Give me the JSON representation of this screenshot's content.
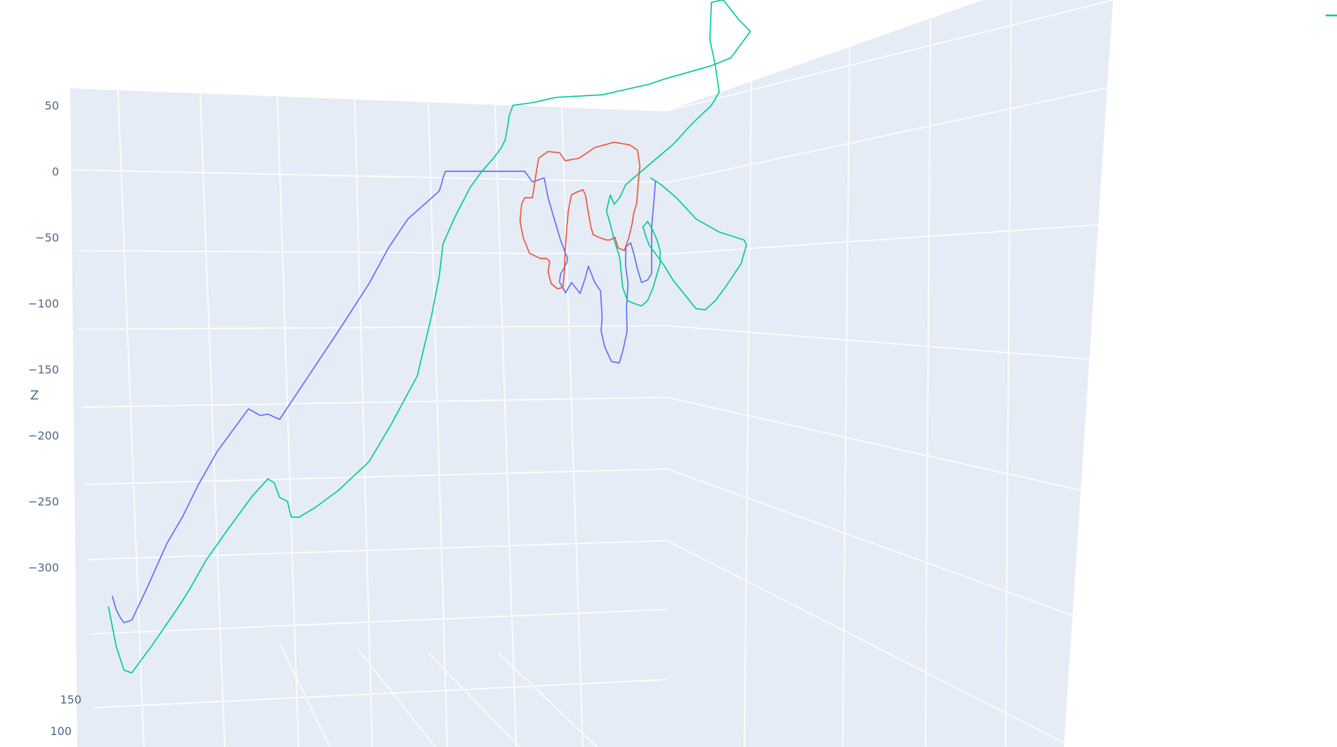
{
  "chart_data": {
    "type": "line3d",
    "scene": {
      "background": "#e5ecf6",
      "gridcolor": "#ffffff",
      "zaxis": {
        "title": "Z",
        "range": [
          -350,
          60
        ],
        "ticks": [
          50,
          0,
          -50,
          -100,
          -150,
          -200,
          -250,
          -300
        ]
      },
      "yaxis": {
        "title": "",
        "ticks": [
          150,
          100
        ]
      }
    },
    "legend": {
      "placement": "top-right",
      "visible_marker_color": "#00cc96"
    },
    "series": [
      {
        "color": "#636efa",
        "points": [
          [
            -300,
            40,
            -322
          ],
          [
            -295,
            40,
            -332
          ],
          [
            -290,
            40,
            -338
          ],
          [
            -285,
            40,
            -342
          ],
          [
            -275,
            40,
            -340
          ],
          [
            -255,
            40,
            -315
          ],
          [
            -230,
            40,
            -282
          ],
          [
            -210,
            40,
            -262
          ],
          [
            -190,
            40,
            -238
          ],
          [
            -165,
            40,
            -212
          ],
          [
            -140,
            40,
            -192
          ],
          [
            -125,
            40,
            -180
          ],
          [
            -110,
            40,
            -185
          ],
          [
            -100,
            40,
            -184
          ],
          [
            -85,
            40,
            -188
          ],
          [
            -50,
            40,
            -157
          ],
          [
            -5,
            40,
            -117
          ],
          [
            30,
            40,
            -85
          ],
          [
            55,
            40,
            -58
          ],
          [
            80,
            40,
            -36
          ],
          [
            120,
            40,
            -15
          ],
          [
            123,
            40,
            -10
          ],
          [
            125,
            40,
            -5
          ],
          [
            128,
            40,
            0
          ],
          [
            170,
            40,
            0
          ],
          [
            210,
            40,
            0
          ],
          [
            230,
            40,
            0
          ],
          [
            240,
            40,
            -8
          ],
          [
            255,
            40,
            -5
          ],
          [
            260,
            40,
            -20
          ],
          [
            268,
            40,
            -36
          ],
          [
            276,
            40,
            -52
          ],
          [
            283,
            40,
            -63
          ],
          [
            283,
            25,
            -65
          ],
          [
            280,
            10,
            -68
          ],
          [
            275,
            0,
            -72
          ],
          [
            270,
            -5,
            -76
          ],
          [
            268,
            -10,
            -82
          ],
          [
            275,
            -15,
            -90
          ],
          [
            282,
            -20,
            -82
          ],
          [
            292,
            -28,
            -90
          ],
          [
            300,
            -20,
            -78
          ],
          [
            305,
            -10,
            -70
          ],
          [
            312,
            -20,
            -82
          ],
          [
            318,
            -30,
            -88
          ],
          [
            320,
            -30,
            -108
          ],
          [
            318,
            -35,
            -118
          ],
          [
            322,
            -40,
            -130
          ],
          [
            330,
            -45,
            -141
          ],
          [
            340,
            -45,
            -142
          ],
          [
            345,
            -45,
            -132
          ],
          [
            350,
            -45,
            -118
          ],
          [
            350,
            -40,
            -100
          ],
          [
            352,
            -40,
            -82
          ],
          [
            350,
            -30,
            -68
          ],
          [
            352,
            -20,
            -55
          ],
          [
            358,
            -20,
            -52
          ],
          [
            362,
            -20,
            -60
          ],
          [
            366,
            -20,
            -70
          ],
          [
            372,
            -20,
            -82
          ],
          [
            380,
            -20,
            -80
          ],
          [
            385,
            -20,
            -75
          ],
          [
            385,
            -20,
            -64
          ],
          [
            385,
            -20,
            -50
          ],
          [
            385,
            -20,
            -40
          ],
          [
            388,
            -20,
            -20
          ],
          [
            390,
            -20,
            -5
          ]
        ]
      },
      {
        "color": "#00cc96",
        "points": [
          [
            -305,
            40,
            -330
          ],
          [
            -300,
            40,
            -345
          ],
          [
            -295,
            40,
            -360
          ],
          [
            -285,
            40,
            -378
          ],
          [
            -275,
            40,
            -380
          ],
          [
            -250,
            40,
            -360
          ],
          [
            -215,
            40,
            -330
          ],
          [
            -200,
            40,
            -316
          ],
          [
            -180,
            40,
            -295
          ],
          [
            -150,
            40,
            -270
          ],
          [
            -120,
            40,
            -246
          ],
          [
            -100,
            40,
            -233
          ],
          [
            -92,
            40,
            -236
          ],
          [
            -85,
            40,
            -247
          ],
          [
            -75,
            40,
            -250
          ],
          [
            -70,
            40,
            -262
          ],
          [
            -60,
            40,
            -262
          ],
          [
            -40,
            40,
            -255
          ],
          [
            -10,
            40,
            -242
          ],
          [
            30,
            40,
            -220
          ],
          [
            60,
            40,
            -190
          ],
          [
            80,
            40,
            -168
          ],
          [
            92,
            40,
            -155
          ],
          [
            110,
            40,
            -110
          ],
          [
            120,
            40,
            -80
          ],
          [
            125,
            40,
            -55
          ],
          [
            140,
            40,
            -35
          ],
          [
            160,
            40,
            -12
          ],
          [
            175,
            40,
            0
          ],
          [
            190,
            40,
            10
          ],
          [
            200,
            40,
            18
          ],
          [
            205,
            40,
            24
          ],
          [
            208,
            40,
            34
          ],
          [
            210,
            40,
            42
          ],
          [
            215,
            40,
            50
          ],
          [
            240,
            40,
            52
          ],
          [
            270,
            40,
            56
          ],
          [
            330,
            40,
            58
          ],
          [
            360,
            40,
            62
          ],
          [
            390,
            40,
            66
          ],
          [
            410,
            40,
            70
          ],
          [
            440,
            40,
            75
          ],
          [
            470,
            40,
            80
          ],
          [
            495,
            40,
            86
          ],
          [
            520,
            40,
            106
          ],
          [
            505,
            40,
            115
          ],
          [
            485,
            40,
            130
          ],
          [
            470,
            40,
            128
          ],
          [
            468,
            40,
            100
          ],
          [
            475,
            40,
            80
          ],
          [
            480,
            40,
            60
          ],
          [
            470,
            40,
            50
          ],
          [
            445,
            40,
            36
          ],
          [
            420,
            40,
            20
          ],
          [
            400,
            40,
            10
          ],
          [
            380,
            40,
            0
          ],
          [
            360,
            40,
            -10
          ],
          [
            352,
            40,
            -20
          ],
          [
            345,
            40,
            -25
          ],
          [
            340,
            40,
            -18
          ],
          [
            335,
            40,
            -30
          ],
          [
            340,
            40,
            -40
          ],
          [
            345,
            40,
            -52
          ],
          [
            352,
            40,
            -65
          ],
          [
            356,
            40,
            -88
          ],
          [
            362,
            40,
            -98
          ],
          [
            370,
            40,
            -100
          ],
          [
            380,
            40,
            -102
          ],
          [
            388,
            40,
            -98
          ],
          [
            395,
            40,
            -88
          ],
          [
            400,
            40,
            -78
          ],
          [
            404,
            40,
            -70
          ],
          [
            404,
            40,
            -60
          ],
          [
            400,
            40,
            -52
          ],
          [
            394,
            40,
            -44
          ],
          [
            388,
            40,
            -38
          ],
          [
            382,
            40,
            -42
          ],
          [
            385,
            40,
            -48
          ],
          [
            390,
            40,
            -56
          ],
          [
            400,
            40,
            -64
          ],
          [
            410,
            40,
            -72
          ],
          [
            420,
            40,
            -82
          ],
          [
            435,
            40,
            -93
          ],
          [
            450,
            40,
            -104
          ],
          [
            462,
            40,
            -105
          ],
          [
            475,
            40,
            -98
          ],
          [
            490,
            40,
            -86
          ],
          [
            508,
            40,
            -70
          ],
          [
            515,
            40,
            -56
          ],
          [
            512,
            40,
            -52
          ],
          [
            480,
            40,
            -46
          ],
          [
            450,
            40,
            -36
          ],
          [
            425,
            40,
            -20
          ],
          [
            405,
            40,
            -10
          ],
          [
            392,
            40,
            -5
          ]
        ]
      },
      {
        "color": "#ef553b",
        "points": [
          [
            230,
            40,
            -20
          ],
          [
            240,
            40,
            -20
          ],
          [
            245,
            40,
            0
          ],
          [
            248,
            40,
            10
          ],
          [
            260,
            40,
            15
          ],
          [
            275,
            40,
            14
          ],
          [
            282,
            40,
            8
          ],
          [
            300,
            40,
            10
          ],
          [
            320,
            40,
            18
          ],
          [
            345,
            40,
            22
          ],
          [
            365,
            40,
            20
          ],
          [
            375,
            40,
            16
          ],
          [
            378,
            40,
            4
          ],
          [
            376,
            40,
            -8
          ],
          [
            374,
            40,
            -24
          ],
          [
            370,
            40,
            -32
          ],
          [
            368,
            40,
            -40
          ],
          [
            364,
            40,
            -50
          ],
          [
            358,
            40,
            -60
          ],
          [
            350,
            40,
            -58
          ],
          [
            346,
            40,
            -50
          ],
          [
            340,
            40,
            -52
          ],
          [
            335,
            40,
            -52
          ],
          [
            325,
            40,
            -50
          ],
          [
            318,
            40,
            -48
          ],
          [
            315,
            40,
            -42
          ],
          [
            312,
            40,
            -32
          ],
          [
            308,
            40,
            -18
          ],
          [
            305,
            40,
            -14
          ],
          [
            296,
            40,
            -16
          ],
          [
            290,
            40,
            -18
          ],
          [
            286,
            40,
            -30
          ],
          [
            284,
            40,
            -44
          ],
          [
            282,
            40,
            -60
          ],
          [
            281,
            40,
            -76
          ],
          [
            279,
            40,
            -88
          ],
          [
            272,
            40,
            -89
          ],
          [
            264,
            40,
            -85
          ],
          [
            260,
            40,
            -76
          ],
          [
            262,
            40,
            -68
          ],
          [
            258,
            40,
            -66
          ],
          [
            250,
            40,
            -66
          ],
          [
            236,
            40,
            -62
          ],
          [
            228,
            40,
            -50
          ],
          [
            224,
            40,
            -38
          ],
          [
            226,
            40,
            -25
          ],
          [
            230,
            40,
            -20
          ]
        ]
      }
    ]
  }
}
